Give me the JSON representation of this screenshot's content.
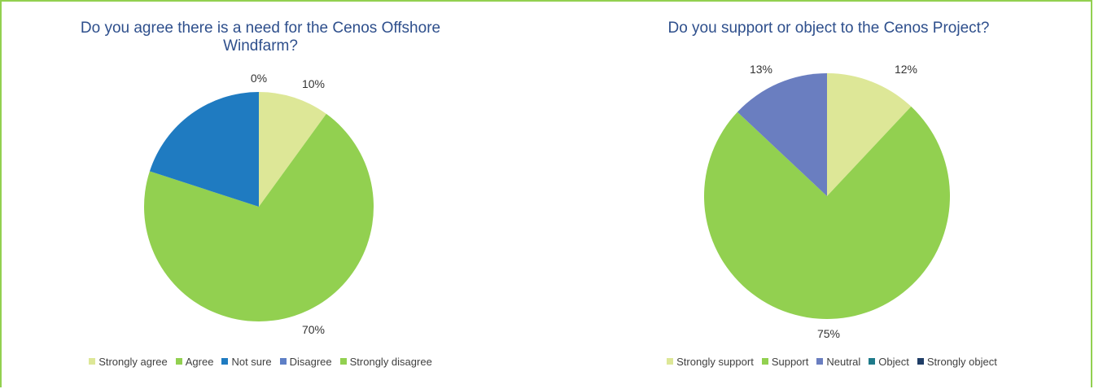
{
  "chart_data": [
    {
      "type": "pie",
      "title": "Do you agree there is a need for the Cenos Offshore Windfarm?",
      "title_lines": [
        "Do you agree there is a need for the Cenos Offshore",
        "Windfarm?"
      ],
      "categories": [
        "Strongly agree",
        "Agree",
        "Not sure",
        "Disagree",
        "Strongly disagree"
      ],
      "values": [
        10,
        70,
        20,
        0,
        0
      ],
      "labels": [
        "10%",
        "70%",
        "",
        "0%",
        ""
      ],
      "colors": [
        "#dde797",
        "#92d050",
        "#1f7bc1",
        "#5e7fc6",
        "#92d050"
      ],
      "legend_position": "bottom"
    },
    {
      "type": "pie",
      "title": "Do you support or object to the Cenos Project?",
      "title_lines": [
        "Do you support or object to the Cenos Project?"
      ],
      "categories": [
        "Strongly support",
        "Support",
        "Neutral",
        "Object",
        "Strongly object"
      ],
      "values": [
        12,
        75,
        13,
        0,
        0
      ],
      "labels": [
        "12%",
        "75%",
        "13%",
        "",
        ""
      ],
      "colors": [
        "#dde797",
        "#92d050",
        "#6a7ec0",
        "#1e7a8a",
        "#1f3d66"
      ],
      "legend_position": "bottom"
    }
  ]
}
